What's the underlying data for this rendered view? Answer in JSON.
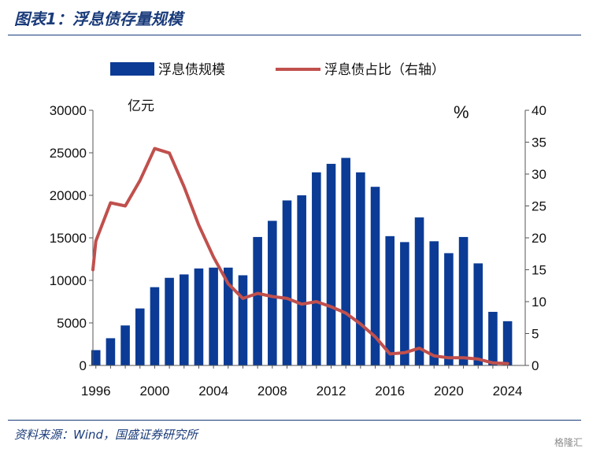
{
  "title": "图表1：浮息债存量规模",
  "source": "资料来源：Wind，国盛证券研究所",
  "watermark": "格隆汇",
  "colors": {
    "bar": "#0b3b95",
    "line": "#c0504d",
    "title": "#1a3b7a"
  },
  "chart_data": {
    "type": "bar",
    "x": [
      1996,
      1997,
      1998,
      1999,
      2000,
      2001,
      2002,
      2003,
      2004,
      2005,
      2006,
      2007,
      2008,
      2009,
      2010,
      2011,
      2012,
      2013,
      2014,
      2015,
      2016,
      2017,
      2018,
      2019,
      2020,
      2021,
      2022,
      2023,
      2024
    ],
    "x_tick_labels": [
      "1996",
      "2000",
      "2004",
      "2008",
      "2012",
      "2016",
      "2020",
      "2024"
    ],
    "x_ticks": [
      1996,
      2000,
      2004,
      2008,
      2012,
      2016,
      2020,
      2024
    ],
    "series": [
      {
        "name": "浮息债规模",
        "type": "bar",
        "axis": "left",
        "values": [
          1800,
          3200,
          4700,
          6700,
          9200,
          10300,
          10700,
          11400,
          11500,
          11500,
          10600,
          15100,
          17000,
          19400,
          20000,
          22700,
          23700,
          24400,
          22700,
          21000,
          15200,
          14500,
          17400,
          14600,
          13200,
          15100,
          12000,
          6300,
          5200
        ]
      },
      {
        "name": "浮息债占比（右轴）",
        "type": "line",
        "axis": "right",
        "x": [
          1995.8,
          1996,
          1997,
          1998,
          1999,
          2000,
          2001,
          2002,
          2003,
          2004,
          2005,
          2006,
          2007,
          2008,
          2009,
          2010,
          2011,
          2012,
          2013,
          2014,
          2015,
          2016,
          2017,
          2018,
          2019,
          2020,
          2021,
          2022,
          2023,
          2024
        ],
        "values": [
          15,
          19.5,
          25.5,
          25,
          29,
          34,
          33.3,
          28,
          22,
          17,
          12.8,
          10.5,
          11.3,
          10.8,
          10.5,
          9.6,
          10,
          9.2,
          8.2,
          6.5,
          4.5,
          1.8,
          2,
          2.7,
          1.5,
          1.2,
          1.2,
          1,
          0.4,
          0.3
        ]
      }
    ],
    "y_left": {
      "label": "亿元",
      "min": 0,
      "max": 30000,
      "ticks": [
        0,
        5000,
        10000,
        15000,
        20000,
        25000,
        30000
      ]
    },
    "y_right": {
      "label": "%",
      "min": 0,
      "max": 40,
      "ticks": [
        0,
        5,
        10,
        15,
        20,
        25,
        30,
        35,
        40
      ]
    },
    "legend": {
      "position": "top",
      "items": [
        "浮息债规模",
        "浮息债占比（右轴）"
      ]
    }
  }
}
